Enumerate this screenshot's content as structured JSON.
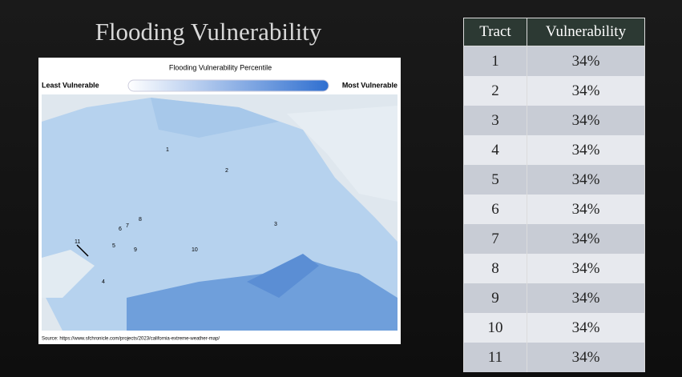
{
  "slide": {
    "title": "Flooding Vulnerability",
    "map": {
      "legend_title": "Flooding Vulnerability Percentile",
      "legend_low": "Least Vulnerable",
      "legend_high": "Most Vulnerable",
      "labels": [
        "1",
        "2",
        "3",
        "4",
        "5",
        "6",
        "7",
        "8",
        "9",
        "10",
        "11"
      ],
      "source": "Source: https://www.sfchronicle.com/projects/2023/california-extreme-weather-map/"
    },
    "table": {
      "header": [
        "Tract",
        "Vulnerability"
      ],
      "rows": [
        [
          "1",
          "34%"
        ],
        [
          "2",
          "34%"
        ],
        [
          "3",
          "34%"
        ],
        [
          "4",
          "34%"
        ],
        [
          "5",
          "34%"
        ],
        [
          "6",
          "34%"
        ],
        [
          "7",
          "34%"
        ],
        [
          "8",
          "34%"
        ],
        [
          "9",
          "34%"
        ],
        [
          "10",
          "34%"
        ],
        [
          "11",
          "34%"
        ]
      ]
    }
  }
}
